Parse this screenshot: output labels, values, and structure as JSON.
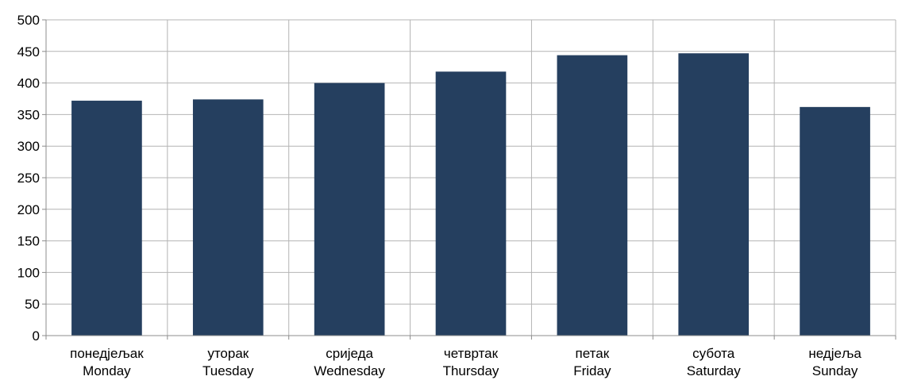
{
  "chart_data": {
    "type": "bar",
    "categories": [
      [
        "понедјељак",
        "Monday"
      ],
      [
        "уторак",
        "Tuesday"
      ],
      [
        "сриједа",
        "Wednesday"
      ],
      [
        "четвртак",
        "Thursday"
      ],
      [
        "петак",
        "Friday"
      ],
      [
        "субота",
        "Saturday"
      ],
      [
        "недјеља",
        "Sunday"
      ]
    ],
    "values": [
      372,
      374,
      400,
      418,
      444,
      447,
      362
    ],
    "ylim": [
      0,
      500
    ],
    "yticks": [
      "0",
      "50",
      "100",
      "150",
      "200",
      "250",
      "300",
      "350",
      "400",
      "450",
      "500"
    ],
    "title": "",
    "xlabel": "",
    "ylabel": "",
    "grid": true,
    "legend": "none",
    "colors": {
      "bar": "#253f5f",
      "grid": "#b4b4b4",
      "axis": "#8c8c8c"
    }
  }
}
